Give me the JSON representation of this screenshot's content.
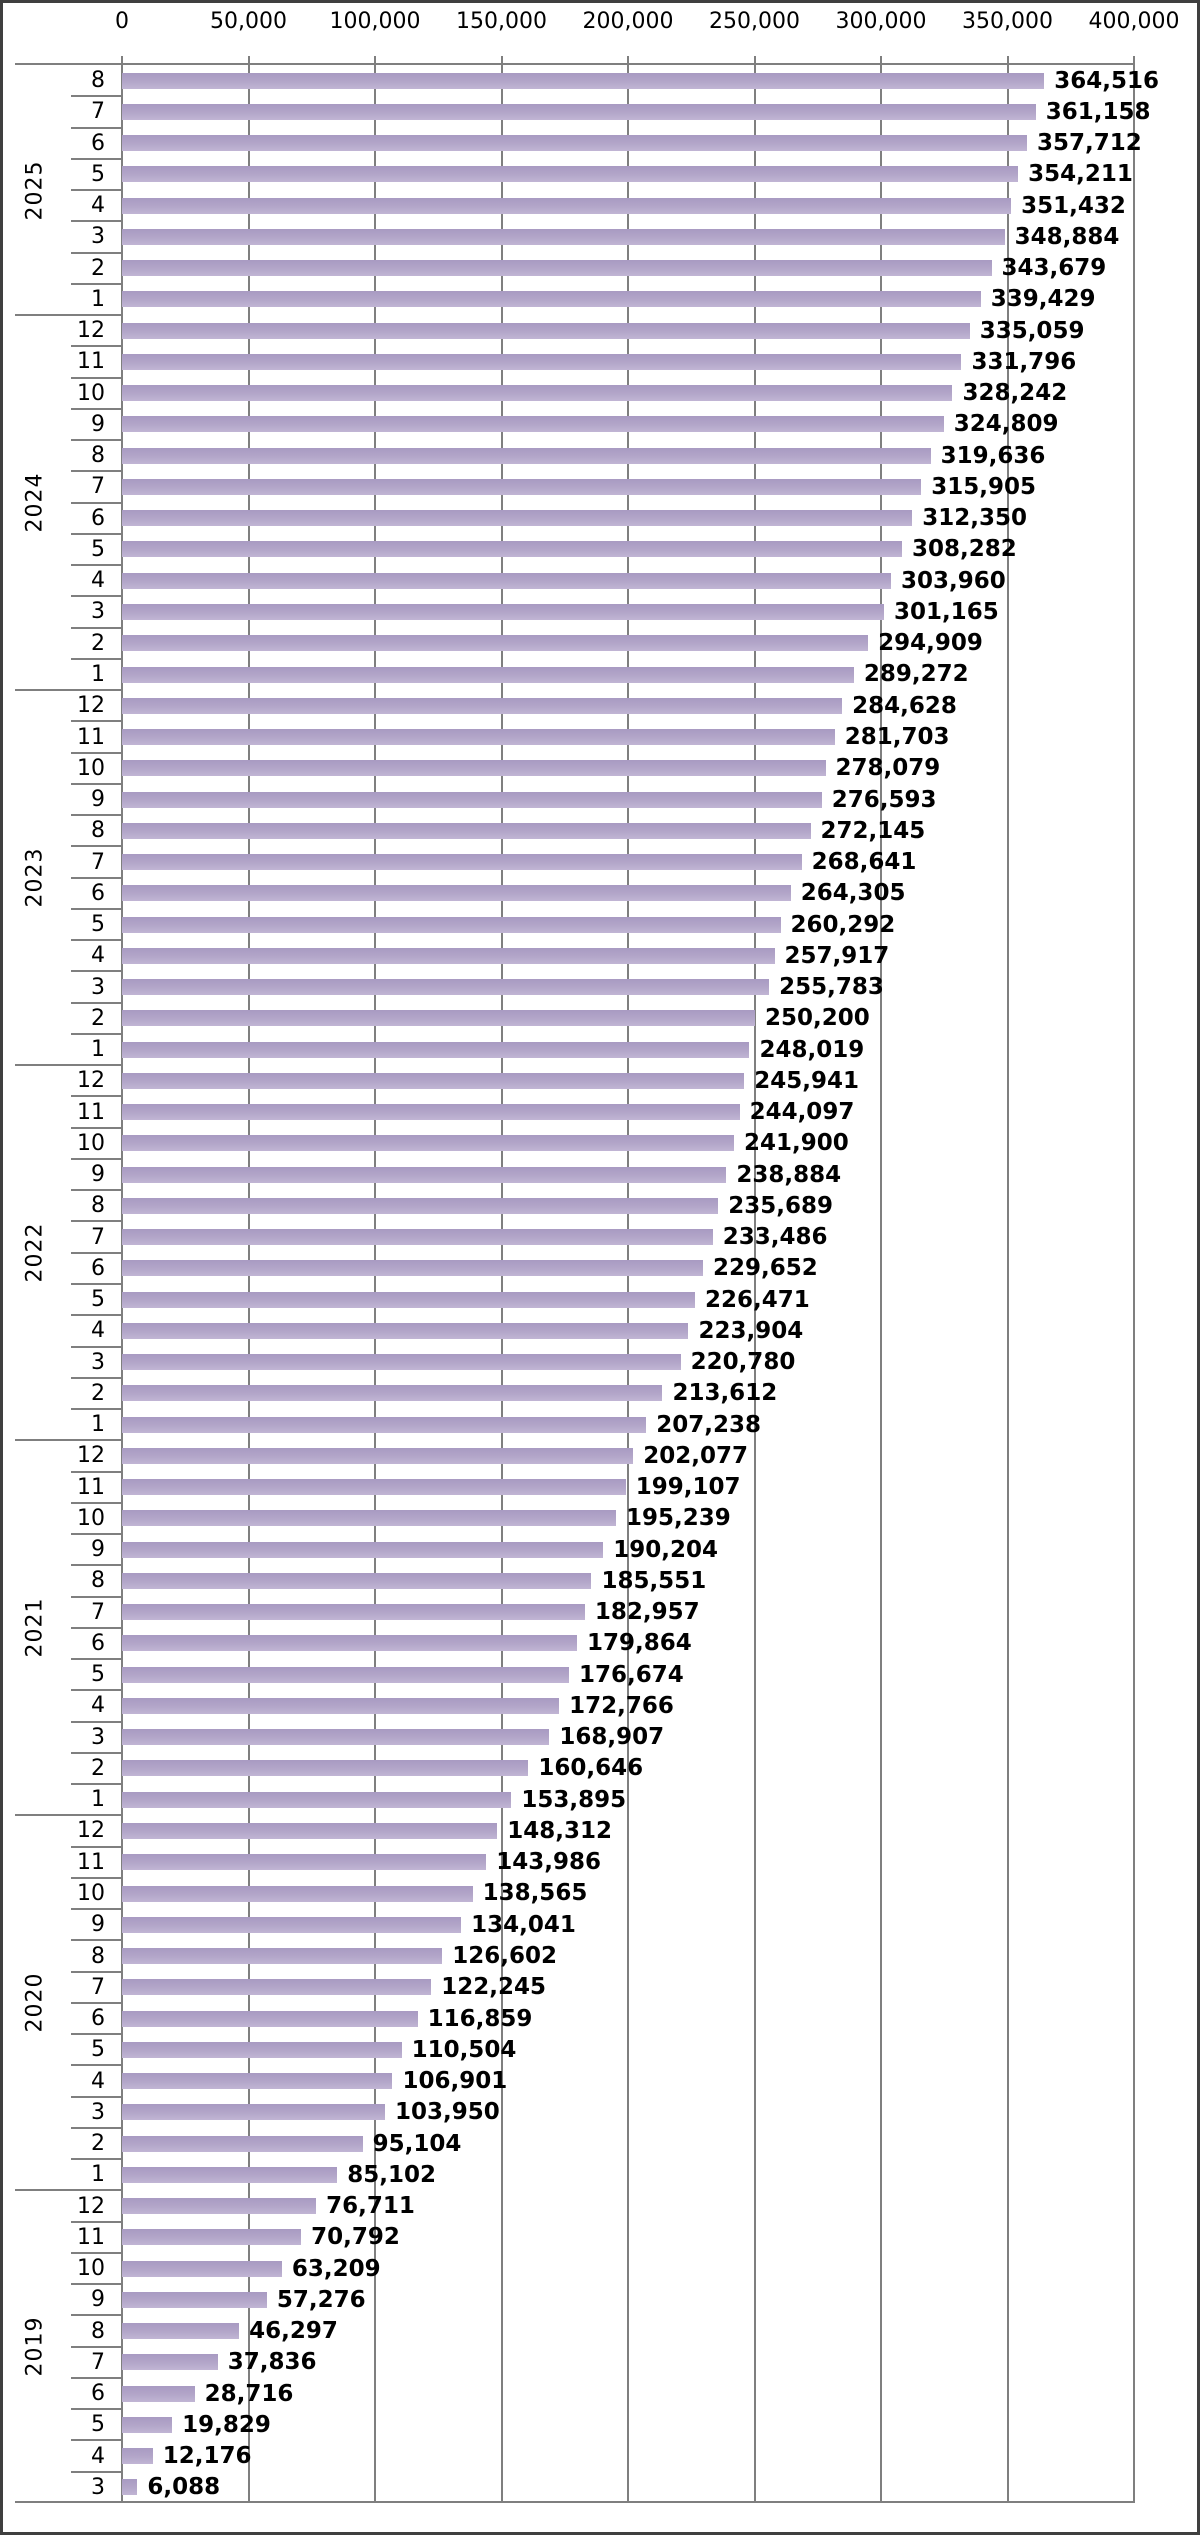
{
  "chart_data": {
    "type": "bar",
    "orientation": "horizontal",
    "title": "",
    "value_axis": {
      "position": "top",
      "min": 0,
      "max": 400000,
      "tick_values": [
        0,
        50000,
        100000,
        150000,
        200000,
        250000,
        300000,
        350000,
        400000
      ],
      "tick_labels": [
        "0",
        "50,000",
        "100,000",
        "150,000",
        "200,000",
        "250,000",
        "300,000",
        "350,000",
        "400,000"
      ],
      "grid": true
    },
    "category_axis": {
      "outer_groups_label": "year",
      "inner_label": "month"
    },
    "colors": {
      "bar": "#b3a6c9",
      "grid": "#7f7f7f",
      "frame": "#3f3f3f",
      "text": "#000000"
    },
    "groups": [
      {
        "year": "2025",
        "rows": [
          {
            "month": "8",
            "value": 364516,
            "label": "364,516"
          },
          {
            "month": "7",
            "value": 361158,
            "label": "361,158"
          },
          {
            "month": "6",
            "value": 357712,
            "label": "357,712"
          },
          {
            "month": "5",
            "value": 354211,
            "label": "354,211"
          },
          {
            "month": "4",
            "value": 351432,
            "label": "351,432"
          },
          {
            "month": "3",
            "value": 348884,
            "label": "348,884"
          },
          {
            "month": "2",
            "value": 343679,
            "label": "343,679"
          },
          {
            "month": "1",
            "value": 339429,
            "label": "339,429"
          }
        ]
      },
      {
        "year": "2024",
        "rows": [
          {
            "month": "12",
            "value": 335059,
            "label": "335,059"
          },
          {
            "month": "11",
            "value": 331796,
            "label": "331,796"
          },
          {
            "month": "10",
            "value": 328242,
            "label": "328,242"
          },
          {
            "month": "9",
            "value": 324809,
            "label": "324,809"
          },
          {
            "month": "8",
            "value": 319636,
            "label": "319,636"
          },
          {
            "month": "7",
            "value": 315905,
            "label": "315,905"
          },
          {
            "month": "6",
            "value": 312350,
            "label": "312,350"
          },
          {
            "month": "5",
            "value": 308282,
            "label": "308,282"
          },
          {
            "month": "4",
            "value": 303960,
            "label": "303,960"
          },
          {
            "month": "3",
            "value": 301165,
            "label": "301,165"
          },
          {
            "month": "2",
            "value": 294909,
            "label": "294,909"
          },
          {
            "month": "1",
            "value": 289272,
            "label": "289,272"
          }
        ]
      },
      {
        "year": "2023",
        "rows": [
          {
            "month": "12",
            "value": 284628,
            "label": "284,628"
          },
          {
            "month": "11",
            "value": 281703,
            "label": "281,703"
          },
          {
            "month": "10",
            "value": 278079,
            "label": "278,079"
          },
          {
            "month": "9",
            "value": 276593,
            "label": "276,593"
          },
          {
            "month": "8",
            "value": 272145,
            "label": "272,145"
          },
          {
            "month": "7",
            "value": 268641,
            "label": "268,641"
          },
          {
            "month": "6",
            "value": 264305,
            "label": "264,305"
          },
          {
            "month": "5",
            "value": 260292,
            "label": "260,292"
          },
          {
            "month": "4",
            "value": 257917,
            "label": "257,917"
          },
          {
            "month": "3",
            "value": 255783,
            "label": "255,783"
          },
          {
            "month": "2",
            "value": 250200,
            "label": "250,200"
          },
          {
            "month": "1",
            "value": 248019,
            "label": "248,019"
          }
        ]
      },
      {
        "year": "2022",
        "rows": [
          {
            "month": "12",
            "value": 245941,
            "label": "245,941"
          },
          {
            "month": "11",
            "value": 244097,
            "label": "244,097"
          },
          {
            "month": "10",
            "value": 241900,
            "label": "241,900"
          },
          {
            "month": "9",
            "value": 238884,
            "label": "238,884"
          },
          {
            "month": "8",
            "value": 235689,
            "label": "235,689"
          },
          {
            "month": "7",
            "value": 233486,
            "label": "233,486"
          },
          {
            "month": "6",
            "value": 229652,
            "label": "229,652"
          },
          {
            "month": "5",
            "value": 226471,
            "label": "226,471"
          },
          {
            "month": "4",
            "value": 223904,
            "label": "223,904"
          },
          {
            "month": "3",
            "value": 220780,
            "label": "220,780"
          },
          {
            "month": "2",
            "value": 213612,
            "label": "213,612"
          },
          {
            "month": "1",
            "value": 207238,
            "label": "207,238"
          }
        ]
      },
      {
        "year": "2021",
        "rows": [
          {
            "month": "12",
            "value": 202077,
            "label": "202,077"
          },
          {
            "month": "11",
            "value": 199107,
            "label": "199,107"
          },
          {
            "month": "10",
            "value": 195239,
            "label": "195,239"
          },
          {
            "month": "9",
            "value": 190204,
            "label": "190,204"
          },
          {
            "month": "8",
            "value": 185551,
            "label": "185,551"
          },
          {
            "month": "7",
            "value": 182957,
            "label": "182,957"
          },
          {
            "month": "6",
            "value": 179864,
            "label": "179,864"
          },
          {
            "month": "5",
            "value": 176674,
            "label": "176,674"
          },
          {
            "month": "4",
            "value": 172766,
            "label": "172,766"
          },
          {
            "month": "3",
            "value": 168907,
            "label": "168,907"
          },
          {
            "month": "2",
            "value": 160646,
            "label": "160,646"
          },
          {
            "month": "1",
            "value": 153895,
            "label": "153,895"
          }
        ]
      },
      {
        "year": "2020",
        "rows": [
          {
            "month": "12",
            "value": 148312,
            "label": "148,312"
          },
          {
            "month": "11",
            "value": 143986,
            "label": "143,986"
          },
          {
            "month": "10",
            "value": 138565,
            "label": "138,565"
          },
          {
            "month": "9",
            "value": 134041,
            "label": "134,041"
          },
          {
            "month": "8",
            "value": 126602,
            "label": "126,602"
          },
          {
            "month": "7",
            "value": 122245,
            "label": "122,245"
          },
          {
            "month": "6",
            "value": 116859,
            "label": "116,859"
          },
          {
            "month": "5",
            "value": 110504,
            "label": "110,504"
          },
          {
            "month": "4",
            "value": 106901,
            "label": "106,901"
          },
          {
            "month": "3",
            "value": 103950,
            "label": "103,950"
          },
          {
            "month": "2",
            "value": 95104,
            "label": "95,104"
          },
          {
            "month": "1",
            "value": 85102,
            "label": "85,102"
          }
        ]
      },
      {
        "year": "2019",
        "rows": [
          {
            "month": "12",
            "value": 76711,
            "label": "76,711"
          },
          {
            "month": "11",
            "value": 70792,
            "label": "70,792"
          },
          {
            "month": "10",
            "value": 63209,
            "label": "63,209"
          },
          {
            "month": "9",
            "value": 57276,
            "label": "57,276"
          },
          {
            "month": "8",
            "value": 46297,
            "label": "46,297"
          },
          {
            "month": "7",
            "value": 37836,
            "label": "37,836"
          },
          {
            "month": "6",
            "value": 28716,
            "label": "28,716"
          },
          {
            "month": "5",
            "value": 19829,
            "label": "19,829"
          },
          {
            "month": "4",
            "value": 12176,
            "label": "12,176"
          },
          {
            "month": "3",
            "value": 6088,
            "label": "6,088"
          }
        ]
      }
    ]
  }
}
